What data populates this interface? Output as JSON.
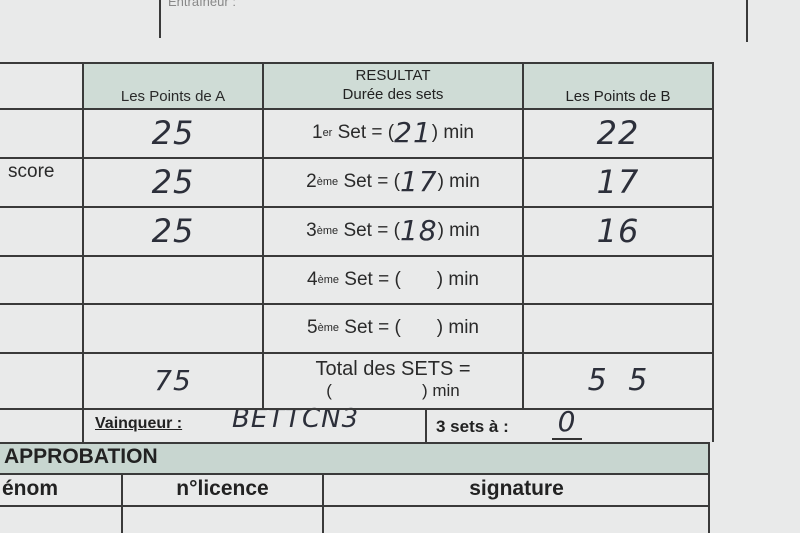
{
  "top": {
    "coach_label": "Entraîneur :"
  },
  "table": {
    "headers": {
      "points_a": "Les Points de A",
      "resultat": "RESULTAT",
      "duree": "Durée des sets",
      "points_b": "Les Points de B"
    },
    "left_label": "score",
    "sets": [
      {
        "ord": "1",
        "sup": "er",
        "label": "Set = (",
        "duration": "21",
        "unit": ") min",
        "points_a": "25",
        "points_b": "22"
      },
      {
        "ord": "2",
        "sup": "ème",
        "label": "Set = (",
        "duration": "17",
        "unit": ") min",
        "points_a": "25",
        "points_b": "17"
      },
      {
        "ord": "3",
        "sup": "ème",
        "label": "Set = (",
        "duration": "18",
        "unit": ") min",
        "points_a": "25",
        "points_b": "16"
      },
      {
        "ord": "4",
        "sup": "ème",
        "label": "Set = (",
        "duration": "",
        "unit": ") min",
        "points_a": "",
        "points_b": ""
      },
      {
        "ord": "5",
        "sup": "ème",
        "label": "Set = (",
        "duration": "",
        "unit": ") min",
        "points_a": "",
        "points_b": ""
      }
    ],
    "total": {
      "label": "Total des SETS =",
      "paren": "(",
      "unit": ") min",
      "points_a": "75",
      "points_b": "5 5"
    },
    "winner": {
      "label": "Vainqueur :",
      "value": "BETTCN3",
      "sets_label": "3 sets à :",
      "sets_value": "0"
    }
  },
  "approbation": {
    "title": "APPROBATION",
    "columns": [
      "énom",
      "n°licence",
      "signature"
    ]
  },
  "colors": {
    "header_fill": "#cfdcd6",
    "paper": "#e9eaea",
    "ink": "#2c2f3a"
  }
}
